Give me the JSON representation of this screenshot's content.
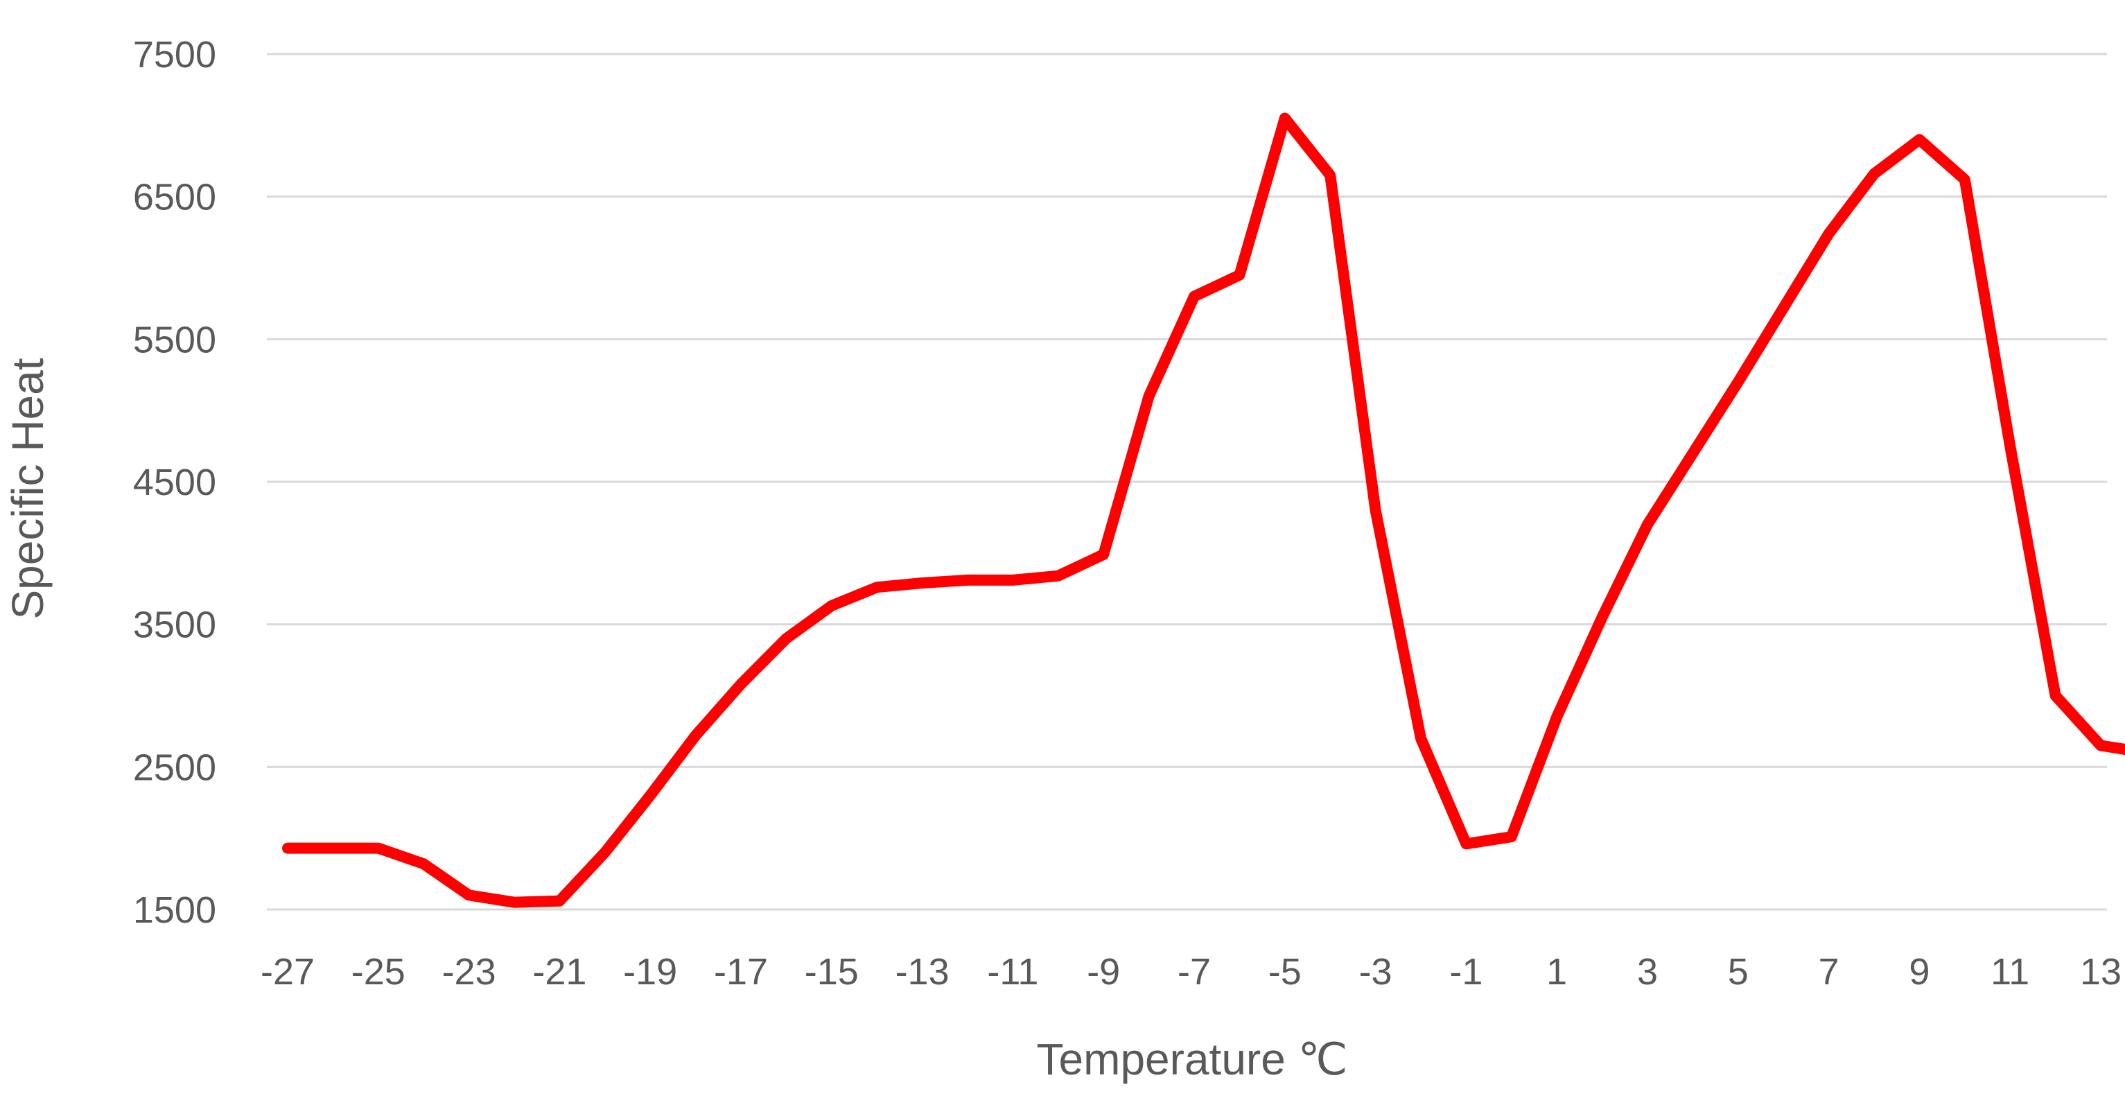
{
  "chart_data": {
    "type": "line",
    "title": "",
    "xlabel": "Temperature ℃",
    "ylabel": "Specific Heat",
    "ylim": [
      1500,
      7500
    ],
    "y_ticks": [
      1500,
      2500,
      3500,
      4500,
      5500,
      6500,
      7500
    ],
    "x_ticks": [
      -27,
      -25,
      -23,
      -21,
      -19,
      -17,
      -15,
      -13,
      -11,
      -9,
      -7,
      -5,
      -3,
      -1,
      1,
      3,
      5,
      7,
      9,
      11,
      13
    ],
    "x": [
      -27,
      -26,
      -25,
      -24,
      -23,
      -22,
      -21,
      -20,
      -19,
      -18,
      -17,
      -16,
      -15,
      -14,
      -13,
      -12,
      -11,
      -10,
      -9,
      -8,
      -7,
      -6,
      -5,
      -4,
      -3,
      -2,
      -1,
      0,
      1,
      2,
      3,
      4,
      5,
      6,
      7,
      8,
      9,
      10,
      11,
      12,
      13,
      14
    ],
    "series": [
      {
        "color": "#ff0000",
        "values": [
          1930,
          1930,
          1930,
          1820,
          1600,
          1550,
          1560,
          1900,
          2300,
          2720,
          3080,
          3400,
          3630,
          3760,
          3790,
          3810,
          3810,
          3840,
          3990,
          5100,
          5800,
          5950,
          7050,
          6650,
          4300,
          2700,
          1960,
          2010,
          2850,
          3550,
          4200,
          4700,
          5200,
          5720,
          6240,
          6660,
          6900,
          6620,
          4750,
          3000,
          2650,
          2600
        ]
      }
    ],
    "grid": true,
    "legend": "none"
  }
}
